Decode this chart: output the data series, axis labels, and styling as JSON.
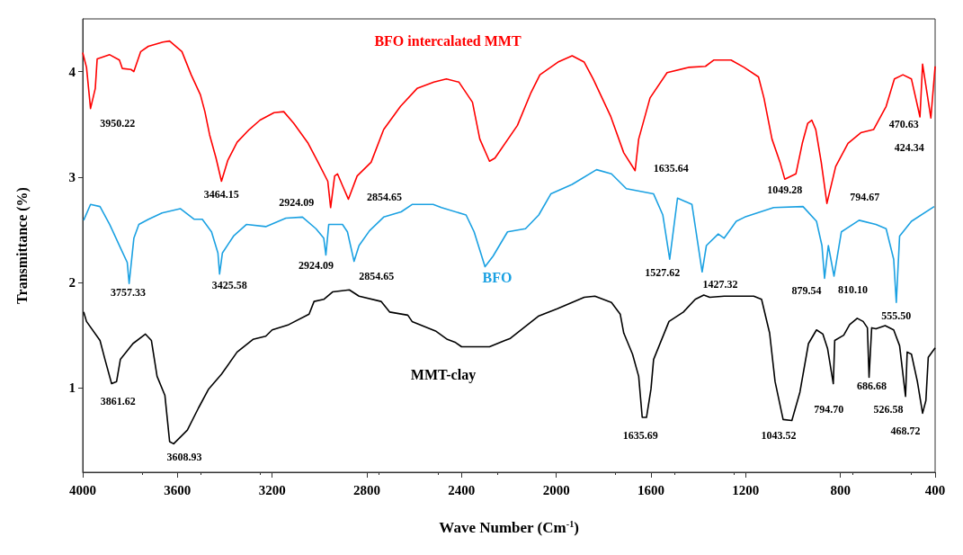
{
  "chart_data": {
    "type": "line",
    "xlabel": "Wave Number (Cm$^{-1}$)",
    "ylabel": "Transmittance (%)",
    "xlim": [
      4000,
      400
    ],
    "xticks": [
      4000,
      3600,
      3200,
      2800,
      2400,
      2000,
      1600,
      1200,
      800,
      400
    ],
    "ylim": [
      0.2,
      4.5
    ],
    "yticks": [
      1,
      2,
      3,
      4
    ],
    "grid": false,
    "legend": false,
    "marker": "none",
    "line_style": "solid",
    "series": [
      {
        "name": "BFO intercalated MMT",
        "color": "#ff0000",
        "x": [
          4000,
          3984,
          3967,
          3947,
          3939,
          3886,
          3845,
          3833,
          3796,
          3784,
          3755,
          3723,
          3661,
          3633,
          3581,
          3542,
          3503,
          3484,
          3464,
          3437,
          3414,
          3387,
          3348,
          3297,
          3251,
          3192,
          3151,
          3109,
          3048,
          3006,
          2965,
          2953,
          2936,
          2924,
          2903,
          2878,
          2841,
          2782,
          2729,
          2658,
          2588,
          2517,
          2464,
          2411,
          2354,
          2323,
          2282,
          2259,
          2164,
          2107,
          2069,
          1993,
          1933,
          1882,
          1844,
          1771,
          1715,
          1667,
          1652,
          1604,
          1532,
          1442,
          1370,
          1334,
          1262,
          1207,
          1146,
          1123,
          1089,
          1055,
          1035,
          988,
          961,
          938,
          921,
          904,
          881,
          857,
          820,
          768,
          714,
          660,
          607,
          572,
          536,
          500,
          464,
          453,
          418,
          400
        ],
        "values": [
          4.18,
          4.04,
          3.65,
          3.84,
          4.12,
          4.16,
          4.11,
          4.03,
          4.02,
          4.0,
          4.19,
          4.24,
          4.28,
          4.29,
          4.19,
          3.97,
          3.78,
          3.62,
          3.4,
          3.18,
          2.96,
          3.16,
          3.33,
          3.45,
          3.54,
          3.61,
          3.62,
          3.51,
          3.32,
          3.14,
          2.96,
          2.71,
          3.01,
          3.03,
          2.92,
          2.79,
          3.01,
          3.14,
          3.45,
          3.67,
          3.84,
          3.9,
          3.93,
          3.9,
          3.71,
          3.36,
          3.15,
          3.18,
          3.49,
          3.8,
          3.97,
          4.09,
          4.15,
          4.09,
          3.93,
          3.58,
          3.23,
          3.06,
          3.36,
          3.75,
          3.99,
          4.04,
          4.05,
          4.11,
          4.11,
          4.04,
          3.95,
          3.75,
          3.36,
          3.14,
          2.98,
          3.03,
          3.32,
          3.51,
          3.54,
          3.45,
          3.14,
          2.75,
          3.1,
          3.32,
          3.42,
          3.45,
          3.67,
          3.93,
          3.97,
          3.93,
          3.57,
          4.07,
          3.56,
          4.05
        ]
      },
      {
        "name": "BFO",
        "color": "#1ba1e2",
        "x": [
          3996,
          3967,
          3927,
          3886,
          3837,
          3812,
          3804,
          3784,
          3763,
          3722,
          3665,
          3588,
          3530,
          3495,
          3456,
          3429,
          3422,
          3410,
          3363,
          3309,
          3227,
          3142,
          3072,
          3015,
          2982,
          2973,
          2961,
          2903,
          2882,
          2854,
          2833,
          2789,
          2729,
          2655,
          2609,
          2520,
          2485,
          2381,
          2347,
          2301,
          2267,
          2206,
          2130,
          2074,
          2023,
          1933,
          1830,
          1767,
          1704,
          1589,
          1550,
          1521,
          1488,
          1427,
          1384,
          1366,
          1316,
          1291,
          1240,
          1204,
          1082,
          958,
          901,
          878,
          867,
          851,
          827,
          796,
          721,
          650,
          607,
          575,
          564,
          550,
          500,
          404
        ],
        "values": [
          2.59,
          2.74,
          2.72,
          2.55,
          2.31,
          2.19,
          1.99,
          2.42,
          2.55,
          2.6,
          2.66,
          2.7,
          2.6,
          2.6,
          2.48,
          2.28,
          2.08,
          2.28,
          2.44,
          2.55,
          2.53,
          2.61,
          2.62,
          2.51,
          2.42,
          2.26,
          2.55,
          2.55,
          2.48,
          2.2,
          2.35,
          2.49,
          2.62,
          2.67,
          2.74,
          2.74,
          2.71,
          2.64,
          2.48,
          2.15,
          2.25,
          2.48,
          2.51,
          2.64,
          2.84,
          2.93,
          3.07,
          3.03,
          2.89,
          2.84,
          2.64,
          2.22,
          2.8,
          2.74,
          2.1,
          2.35,
          2.46,
          2.42,
          2.58,
          2.62,
          2.71,
          2.72,
          2.58,
          2.35,
          2.04,
          2.35,
          2.06,
          2.48,
          2.59,
          2.55,
          2.51,
          2.22,
          1.81,
          2.44,
          2.58,
          2.72
        ]
      },
      {
        "name": "MMT-clay",
        "color": "#000000",
        "x": [
          3996,
          3984,
          3927,
          3906,
          3878,
          3857,
          3841,
          3788,
          3735,
          3710,
          3686,
          3653,
          3633,
          3616,
          3558,
          3511,
          3468,
          3414,
          3348,
          3281,
          3227,
          3200,
          3130,
          3044,
          3023,
          2982,
          2945,
          2874,
          2833,
          2740,
          2704,
          2627,
          2609,
          2510,
          2460,
          2425,
          2400,
          2282,
          2217,
          2194,
          2076,
          1996,
          1882,
          1837,
          1767,
          1730,
          1715,
          1678,
          1652,
          1637,
          1619,
          1600,
          1589,
          1524,
          1463,
          1413,
          1377,
          1352,
          1291,
          1166,
          1133,
          1099,
          1076,
          1042,
          1005,
          971,
          935,
          901,
          874,
          854,
          830,
          824,
          786,
          761,
          729,
          704,
          686,
          679,
          668,
          650,
          611,
          575,
          550,
          525,
          518,
          500,
          475,
          453,
          439,
          429,
          400
        ],
        "values": [
          1.72,
          1.63,
          1.45,
          1.27,
          1.04,
          1.06,
          1.27,
          1.42,
          1.51,
          1.45,
          1.11,
          0.93,
          0.49,
          0.47,
          0.6,
          0.81,
          0.99,
          1.13,
          1.34,
          1.46,
          1.49,
          1.55,
          1.6,
          1.7,
          1.82,
          1.84,
          1.91,
          1.93,
          1.87,
          1.82,
          1.72,
          1.69,
          1.63,
          1.54,
          1.46,
          1.43,
          1.39,
          1.39,
          1.45,
          1.47,
          1.68,
          1.75,
          1.86,
          1.87,
          1.81,
          1.7,
          1.52,
          1.32,
          1.11,
          0.72,
          0.72,
          0.99,
          1.27,
          1.63,
          1.72,
          1.84,
          1.88,
          1.86,
          1.87,
          1.87,
          1.84,
          1.52,
          1.06,
          0.7,
          0.69,
          0.96,
          1.42,
          1.55,
          1.51,
          1.37,
          1.04,
          1.45,
          1.5,
          1.6,
          1.66,
          1.63,
          1.57,
          1.1,
          1.57,
          1.56,
          1.59,
          1.55,
          1.4,
          0.92,
          1.34,
          1.32,
          1.06,
          0.76,
          0.88,
          1.29,
          1.38
        ]
      }
    ],
    "annotations": [
      {
        "text": "3950.22",
        "x": 3967,
        "y": 3.65
      },
      {
        "text": "3464.15",
        "x": 3414,
        "y": 2.96
      },
      {
        "text": "2924.09",
        "x": 2953,
        "y": 2.71
      },
      {
        "text": "2854.65",
        "x": 2878,
        "y": 2.79
      },
      {
        "text": "1635.64",
        "x": 1667,
        "y": 3.06
      },
      {
        "text": "1049.28",
        "x": 1035,
        "y": 2.98
      },
      {
        "text": "794.67",
        "x": 857,
        "y": 2.75
      },
      {
        "text": "470.63",
        "x": 464,
        "y": 3.57
      },
      {
        "text": "424.34",
        "x": 418,
        "y": 3.56
      },
      {
        "text": "3757.33",
        "x": 3804,
        "y": 1.99
      },
      {
        "text": "3425.58",
        "x": 3422,
        "y": 2.08
      },
      {
        "text": "2924.09",
        "x": 2973,
        "y": 2.26
      },
      {
        "text": "2854.65",
        "x": 2854,
        "y": 2.2
      },
      {
        "text": "1527.62",
        "x": 1521,
        "y": 2.22
      },
      {
        "text": "1427.32",
        "x": 1384,
        "y": 2.1
      },
      {
        "text": "879.54",
        "x": 867,
        "y": 2.04
      },
      {
        "text": "810.10",
        "x": 827,
        "y": 2.06
      },
      {
        "text": "555.50",
        "x": 564,
        "y": 1.81
      },
      {
        "text": "3861.62",
        "x": 3878,
        "y": 1.04
      },
      {
        "text": "3608.93",
        "x": 3616,
        "y": 0.47
      },
      {
        "text": "1635.69",
        "x": 1637,
        "y": 0.72
      },
      {
        "text": "1043.52",
        "x": 1042,
        "y": 0.7
      },
      {
        "text": "794.70",
        "x": 830,
        "y": 1.04
      },
      {
        "text": "686.68",
        "x": 679,
        "y": 1.1
      },
      {
        "text": "526.58",
        "x": 525,
        "y": 0.92
      },
      {
        "text": "468.72",
        "x": 453,
        "y": 0.76
      }
    ]
  }
}
